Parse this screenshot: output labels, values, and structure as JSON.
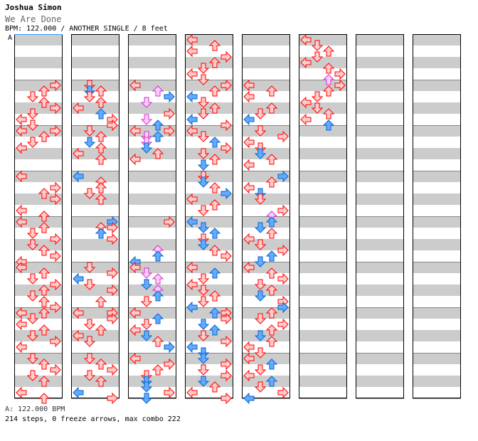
{
  "header": {
    "artist": "Joshua Simon",
    "title": "We Are Done",
    "info": "BPM: 122.000 / ANOTHER SINGLE / 8 feet",
    "bpm_marker": "A"
  },
  "footer": {
    "bpm_line": "A: 122.000 BPM",
    "stats_line": "214 steps, 0 freeze arrows, max combo 222"
  },
  "colors": {
    "stripe": "#cccccc",
    "red_fill": "#ffcccc",
    "red_stroke": "#ff0000",
    "blue_fill": "#66aaff",
    "blue_stroke": "#0066cc",
    "pink_fill": "#ffccff",
    "pink_stroke": "#cc33cc"
  },
  "chart_data": {
    "type": "step-chart",
    "measures_per_column": 8,
    "columns": 8,
    "lanes": [
      "left",
      "down",
      "up",
      "right"
    ],
    "bpm": 122.0,
    "steps": 214,
    "freeze_arrows": 0,
    "max_combo": 222,
    "notes": [
      [
        1,
        0,
        3,
        "r"
      ],
      [
        1,
        1,
        2,
        "r"
      ],
      [
        1,
        2,
        1,
        "r"
      ],
      [
        1,
        3,
        2,
        "r"
      ],
      [
        1,
        4,
        3,
        "r"
      ],
      [
        1,
        5,
        1,
        "r"
      ],
      [
        1,
        6,
        0,
        "r"
      ],
      [
        1,
        7,
        1,
        "r"
      ],
      [
        2,
        0,
        0,
        "r"
      ],
      [
        2,
        0,
        3,
        "r"
      ],
      [
        2,
        1,
        2,
        "r"
      ],
      [
        2,
        2,
        1,
        "r"
      ],
      [
        2,
        3,
        0,
        "r"
      ],
      [
        3,
        0,
        0,
        "r"
      ],
      [
        3,
        2,
        3,
        "r"
      ],
      [
        3,
        3,
        2,
        "r"
      ],
      [
        3,
        4,
        3,
        "r"
      ],
      [
        3,
        6,
        0,
        "r"
      ],
      [
        3,
        7,
        2,
        "r"
      ],
      [
        4,
        0,
        0,
        "r"
      ],
      [
        4,
        1,
        2,
        "r"
      ],
      [
        4,
        2,
        1,
        "r"
      ],
      [
        4,
        3,
        3,
        "r"
      ],
      [
        4,
        4,
        1,
        "r"
      ],
      [
        4,
        5,
        2,
        "r"
      ],
      [
        4,
        6,
        3,
        "r"
      ],
      [
        4,
        7,
        0,
        "r"
      ],
      [
        5,
        0,
        0,
        "r"
      ],
      [
        5,
        1,
        2,
        "r"
      ],
      [
        5,
        2,
        1,
        "r"
      ],
      [
        5,
        3,
        3,
        "r"
      ],
      [
        5,
        4,
        2,
        "r"
      ],
      [
        5,
        5,
        1,
        "r"
      ],
      [
        5,
        6,
        2,
        "r"
      ],
      [
        5,
        7,
        3,
        "r"
      ],
      [
        6,
        0,
        0,
        "r"
      ],
      [
        6,
        0,
        2,
        "r"
      ],
      [
        6,
        1,
        1,
        "r"
      ],
      [
        6,
        2,
        0,
        "r"
      ],
      [
        6,
        3,
        2,
        "r"
      ],
      [
        6,
        4,
        1,
        "r"
      ],
      [
        6,
        5,
        3,
        "r"
      ],
      [
        6,
        6,
        0,
        "r"
      ],
      [
        7,
        0,
        1,
        "r"
      ],
      [
        7,
        1,
        2,
        "r"
      ],
      [
        7,
        2,
        3,
        "r"
      ],
      [
        7,
        3,
        1,
        "r"
      ],
      [
        7,
        4,
        2,
        "r"
      ],
      [
        7,
        6,
        0,
        "r"
      ],
      [
        7,
        7,
        2,
        "r"
      ],
      [
        9,
        0,
        1,
        "r"
      ],
      [
        9,
        1,
        1,
        "b"
      ],
      [
        9,
        1,
        2,
        "r"
      ],
      [
        9,
        2,
        1,
        "r"
      ],
      [
        9,
        3,
        2,
        "r"
      ],
      [
        9,
        4,
        0,
        "r"
      ],
      [
        9,
        5,
        2,
        "b"
      ],
      [
        9,
        6,
        3,
        "r"
      ],
      [
        9,
        7,
        3,
        "r"
      ],
      [
        10,
        0,
        1,
        "r"
      ],
      [
        10,
        1,
        2,
        "r"
      ],
      [
        10,
        2,
        1,
        "b"
      ],
      [
        10,
        3,
        2,
        "r"
      ],
      [
        10,
        4,
        0,
        "r"
      ],
      [
        10,
        5,
        2,
        "r"
      ],
      [
        11,
        0,
        0,
        "b"
      ],
      [
        11,
        1,
        2,
        "r"
      ],
      [
        11,
        2,
        2,
        "r"
      ],
      [
        11,
        3,
        1,
        "r"
      ],
      [
        11,
        4,
        2,
        "r"
      ],
      [
        12,
        0,
        3,
        "b"
      ],
      [
        12,
        1,
        2,
        "r"
      ],
      [
        12,
        1,
        3,
        "r"
      ],
      [
        12,
        2,
        2,
        "b"
      ],
      [
        12,
        3,
        3,
        "r"
      ],
      [
        13,
        0,
        1,
        "r"
      ],
      [
        13,
        1,
        3,
        "r"
      ],
      [
        13,
        2,
        0,
        "b"
      ],
      [
        13,
        3,
        1,
        "r"
      ],
      [
        13,
        4,
        3,
        "r"
      ],
      [
        13,
        6,
        2,
        "r"
      ],
      [
        14,
        0,
        0,
        "r"
      ],
      [
        14,
        0,
        3,
        "r"
      ],
      [
        14,
        1,
        3,
        "r"
      ],
      [
        14,
        2,
        1,
        "r"
      ],
      [
        14,
        3,
        2,
        "r"
      ],
      [
        14,
        4,
        0,
        "r"
      ],
      [
        14,
        5,
        1,
        "r"
      ],
      [
        15,
        0,
        1,
        "r"
      ],
      [
        15,
        1,
        2,
        "r"
      ],
      [
        15,
        2,
        3,
        "r"
      ],
      [
        15,
        3,
        1,
        "r"
      ],
      [
        15,
        4,
        2,
        "r"
      ],
      [
        15,
        6,
        0,
        "b"
      ],
      [
        15,
        7,
        3,
        "r"
      ],
      [
        17,
        0,
        0,
        "r"
      ],
      [
        17,
        1,
        2,
        "p"
      ],
      [
        17,
        2,
        3,
        "b"
      ],
      [
        17,
        3,
        1,
        "p"
      ],
      [
        17,
        5,
        3,
        "r"
      ],
      [
        17,
        6,
        1,
        "p"
      ],
      [
        17,
        7,
        2,
        "b"
      ],
      [
        18,
        0,
        0,
        "r"
      ],
      [
        18,
        0,
        3,
        "r"
      ],
      [
        18,
        1,
        1,
        "p"
      ],
      [
        18,
        1,
        2,
        "b"
      ],
      [
        18,
        2,
        1,
        "p"
      ],
      [
        18,
        3,
        1,
        "b"
      ],
      [
        18,
        4,
        2,
        "r"
      ],
      [
        18,
        5,
        0,
        "r"
      ],
      [
        20,
        0,
        3,
        "r"
      ],
      [
        20,
        5,
        2,
        "p"
      ],
      [
        20,
        6,
        2,
        "b"
      ],
      [
        20,
        7,
        0,
        "b"
      ],
      [
        21,
        0,
        0,
        "r"
      ],
      [
        21,
        1,
        1,
        "p"
      ],
      [
        21,
        2,
        2,
        "p"
      ],
      [
        21,
        3,
        1,
        "b"
      ],
      [
        21,
        4,
        2,
        "p"
      ],
      [
        21,
        5,
        2,
        "b"
      ],
      [
        21,
        6,
        1,
        "r"
      ],
      [
        22,
        0,
        0,
        "r"
      ],
      [
        22,
        1,
        2,
        "b"
      ],
      [
        22,
        2,
        1,
        "r"
      ],
      [
        22,
        3,
        0,
        "r"
      ],
      [
        22,
        4,
        1,
        "b"
      ],
      [
        22,
        5,
        2,
        "r"
      ],
      [
        22,
        6,
        3,
        "b"
      ],
      [
        23,
        0,
        0,
        "r"
      ],
      [
        23,
        1,
        3,
        "r"
      ],
      [
        23,
        2,
        2,
        "r"
      ],
      [
        23,
        3,
        1,
        "r"
      ],
      [
        23,
        4,
        1,
        "b"
      ],
      [
        23,
        5,
        1,
        "b"
      ],
      [
        23,
        6,
        3,
        "r"
      ],
      [
        23,
        7,
        1,
        "b"
      ],
      [
        24,
        0,
        0,
        "r"
      ],
      [
        24,
        1,
        2,
        "r"
      ],
      [
        24,
        2,
        0,
        "r"
      ],
      [
        24,
        3,
        3,
        "r"
      ],
      [
        24,
        4,
        2,
        "r"
      ],
      [
        24,
        5,
        1,
        "r"
      ],
      [
        24,
        6,
        0,
        "r"
      ],
      [
        24,
        7,
        1,
        "r"
      ],
      [
        25,
        0,
        3,
        "r"
      ],
      [
        25,
        1,
        2,
        "r"
      ],
      [
        25,
        2,
        0,
        "b"
      ],
      [
        25,
        3,
        1,
        "r"
      ],
      [
        25,
        4,
        2,
        "r"
      ],
      [
        25,
        5,
        1,
        "r"
      ],
      [
        25,
        6,
        0,
        "b"
      ],
      [
        25,
        7,
        3,
        "r"
      ],
      [
        26,
        0,
        0,
        "r"
      ],
      [
        26,
        1,
        1,
        "r"
      ],
      [
        26,
        2,
        2,
        "b"
      ],
      [
        26,
        3,
        3,
        "r"
      ],
      [
        26,
        4,
        1,
        "r"
      ],
      [
        26,
        5,
        2,
        "r"
      ],
      [
        26,
        6,
        1,
        "b"
      ],
      [
        27,
        0,
        1,
        "r"
      ],
      [
        27,
        1,
        1,
        "b"
      ],
      [
        27,
        2,
        2,
        "r"
      ],
      [
        27,
        3,
        3,
        "b"
      ],
      [
        27,
        4,
        0,
        "r"
      ],
      [
        27,
        5,
        2,
        "r"
      ],
      [
        27,
        6,
        1,
        "r"
      ],
      [
        28,
        0,
        0,
        "b"
      ],
      [
        28,
        1,
        1,
        "b"
      ],
      [
        28,
        2,
        2,
        "b"
      ],
      [
        28,
        3,
        1,
        "r"
      ],
      [
        28,
        4,
        1,
        "b"
      ],
      [
        28,
        5,
        2,
        "r"
      ],
      [
        28,
        6,
        3,
        "r"
      ],
      [
        29,
        0,
        0,
        "r"
      ],
      [
        29,
        1,
        2,
        "b"
      ],
      [
        29,
        2,
        1,
        "r"
      ],
      [
        29,
        3,
        0,
        "r"
      ],
      [
        29,
        4,
        1,
        "r"
      ],
      [
        29,
        5,
        2,
        "r"
      ],
      [
        29,
        6,
        1,
        "r"
      ],
      [
        29,
        7,
        0,
        "b"
      ],
      [
        30,
        0,
        2,
        "b"
      ],
      [
        30,
        0,
        3,
        "r"
      ],
      [
        30,
        1,
        3,
        "r"
      ],
      [
        30,
        2,
        1,
        "b"
      ],
      [
        30,
        3,
        2,
        "b"
      ],
      [
        30,
        4,
        1,
        "r"
      ],
      [
        30,
        5,
        3,
        "r"
      ],
      [
        30,
        6,
        0,
        "b"
      ],
      [
        30,
        7,
        1,
        "b"
      ],
      [
        31,
        0,
        1,
        "b"
      ],
      [
        31,
        1,
        3,
        "r"
      ],
      [
        31,
        2,
        1,
        "r"
      ],
      [
        31,
        3,
        3,
        "r"
      ],
      [
        31,
        4,
        1,
        "b"
      ],
      [
        31,
        5,
        2,
        "r"
      ],
      [
        31,
        6,
        0,
        "r"
      ],
      [
        31,
        7,
        3,
        "r"
      ],
      [
        33,
        0,
        0,
        "r"
      ],
      [
        33,
        1,
        2,
        "r"
      ],
      [
        33,
        2,
        0,
        "r"
      ],
      [
        33,
        4,
        2,
        "r"
      ],
      [
        33,
        5,
        1,
        "r"
      ],
      [
        33,
        6,
        0,
        "b"
      ],
      [
        34,
        0,
        1,
        "r"
      ],
      [
        34,
        1,
        3,
        "r"
      ],
      [
        34,
        2,
        0,
        "r"
      ],
      [
        34,
        3,
        1,
        "r"
      ],
      [
        34,
        4,
        1,
        "b"
      ],
      [
        34,
        5,
        2,
        "r"
      ],
      [
        34,
        6,
        0,
        "r"
      ],
      [
        35,
        0,
        3,
        "b"
      ],
      [
        35,
        1,
        2,
        "r"
      ],
      [
        35,
        2,
        0,
        "r"
      ],
      [
        35,
        3,
        1,
        "b"
      ],
      [
        35,
        4,
        1,
        "r"
      ],
      [
        35,
        6,
        3,
        "r"
      ],
      [
        35,
        7,
        2,
        "p"
      ],
      [
        36,
        0,
        2,
        "b"
      ],
      [
        36,
        1,
        1,
        "b"
      ],
      [
        36,
        2,
        2,
        "r"
      ],
      [
        36,
        3,
        0,
        "r"
      ],
      [
        36,
        4,
        1,
        "r"
      ],
      [
        36,
        5,
        3,
        "r"
      ],
      [
        36,
        6,
        2,
        "b"
      ],
      [
        36,
        7,
        1,
        "b"
      ],
      [
        37,
        0,
        0,
        "r"
      ],
      [
        37,
        1,
        2,
        "r"
      ],
      [
        37,
        2,
        3,
        "r"
      ],
      [
        37,
        3,
        1,
        "r"
      ],
      [
        37,
        4,
        2,
        "r"
      ],
      [
        37,
        5,
        1,
        "b"
      ],
      [
        37,
        6,
        3,
        "r"
      ],
      [
        37,
        7,
        3,
        "b"
      ],
      [
        38,
        0,
        2,
        "r"
      ],
      [
        38,
        1,
        1,
        "r"
      ],
      [
        38,
        2,
        3,
        "r"
      ],
      [
        38,
        3,
        2,
        "r"
      ],
      [
        38,
        4,
        1,
        "b"
      ],
      [
        38,
        5,
        2,
        "r"
      ],
      [
        38,
        6,
        0,
        "r"
      ],
      [
        38,
        7,
        1,
        "r"
      ],
      [
        39,
        0,
        0,
        "r"
      ],
      [
        39,
        1,
        2,
        "b"
      ],
      [
        39,
        2,
        1,
        "r"
      ],
      [
        39,
        3,
        0,
        "r"
      ],
      [
        39,
        4,
        2,
        "b"
      ],
      [
        39,
        5,
        1,
        "r"
      ],
      [
        39,
        6,
        3,
        "r"
      ],
      [
        39,
        7,
        0,
        "b"
      ],
      [
        40,
        0,
        0,
        "r"
      ],
      [
        40,
        1,
        1,
        "r"
      ],
      [
        40,
        2,
        2,
        "r"
      ],
      [
        40,
        3,
        1,
        "r"
      ],
      [
        40,
        4,
        0,
        "r"
      ],
      [
        40,
        5,
        2,
        "r"
      ],
      [
        40,
        6,
        3,
        "r"
      ],
      [
        40,
        7,
        2,
        "p"
      ],
      [
        41,
        0,
        3,
        "r"
      ],
      [
        41,
        1,
        2,
        "r"
      ],
      [
        41,
        2,
        1,
        "r"
      ],
      [
        41,
        3,
        0,
        "r"
      ],
      [
        41,
        4,
        1,
        "r"
      ],
      [
        41,
        5,
        2,
        "r"
      ],
      [
        41,
        6,
        0,
        "r"
      ],
      [
        41,
        7,
        2,
        "b"
      ]
    ]
  }
}
